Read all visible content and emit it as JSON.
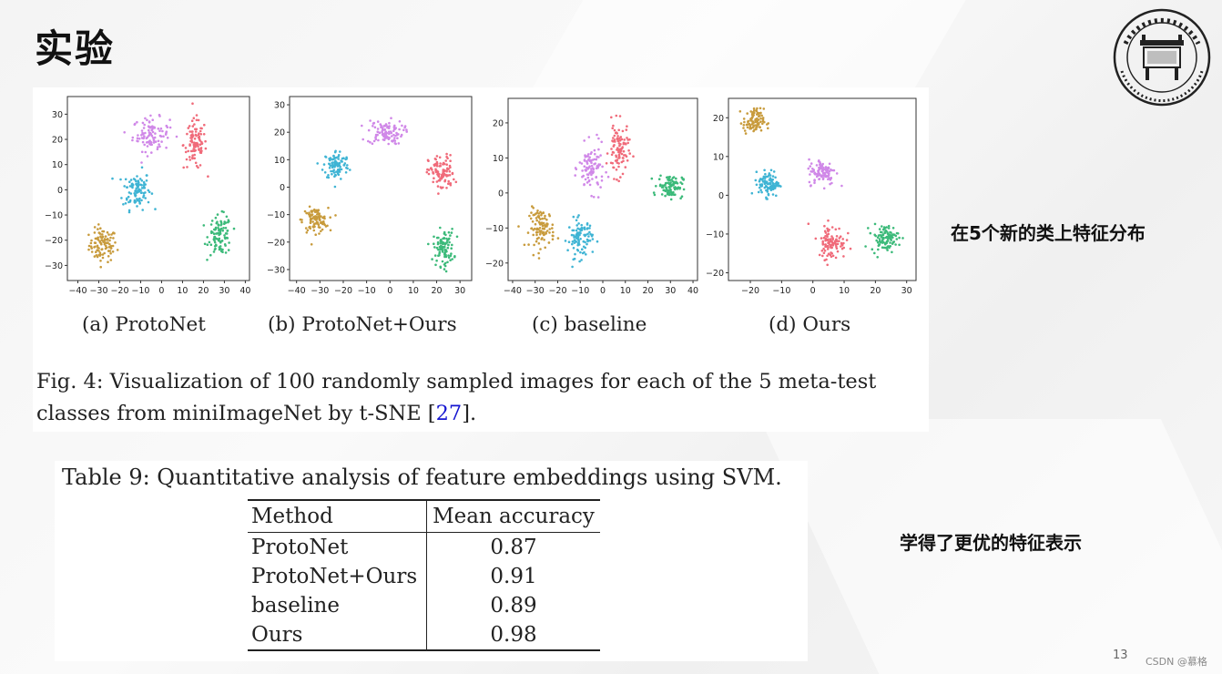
{
  "slide": {
    "title": "实验",
    "page_number": "13",
    "watermark": "CSDN @慕格",
    "note_distribution": "在5个新的类上特征分布",
    "note_representation": "学得了更优的特征表示"
  },
  "logo": {
    "icon": "university-seal-icon"
  },
  "figure": {
    "panel_labels": [
      "(a) ProtoNet",
      "(b) ProtoNet+Ours",
      "(c) baseline",
      "(d) Ours"
    ],
    "caption_part1": "Fig. 4: Visualization of 100 randomly sampled images for each of the 5 meta-test",
    "caption_part2": "classes from miniImageNet by t-SNE [",
    "caption_ref": "27",
    "caption_part3": "]."
  },
  "table": {
    "caption": "Table 9: Quantitative analysis of feature embeddings using SVM.",
    "headers": [
      "Method",
      "Mean accuracy"
    ],
    "rows": [
      {
        "method": "ProtoNet",
        "accuracy": "0.87"
      },
      {
        "method": "ProtoNet+Ours",
        "accuracy": "0.91"
      },
      {
        "method": "baseline",
        "accuracy": "0.89"
      },
      {
        "method": "Ours",
        "accuracy": "0.98"
      }
    ]
  },
  "chart_data": [
    {
      "type": "scatter",
      "title": "(a) ProtoNet",
      "xlim": [
        -45,
        42
      ],
      "ylim": [
        -36,
        37
      ],
      "xticks": [
        -40,
        -30,
        -20,
        -10,
        0,
        10,
        20,
        30,
        40
      ],
      "yticks": [
        -30,
        -20,
        -10,
        0,
        10,
        20,
        30
      ],
      "clusters": [
        {
          "color": "#c89b3c",
          "center": [
            -28,
            -22
          ],
          "spread": [
            6,
            6
          ]
        },
        {
          "color": "#3fb4d4",
          "center": [
            -12,
            0
          ],
          "spread": [
            6,
            7
          ]
        },
        {
          "color": "#d088e8",
          "center": [
            -5,
            22
          ],
          "spread": [
            8,
            6
          ]
        },
        {
          "color": "#f06b7a",
          "center": [
            16,
            18
          ],
          "spread": [
            5,
            9
          ]
        },
        {
          "color": "#3cba7a",
          "center": [
            28,
            -18
          ],
          "spread": [
            5,
            7
          ]
        }
      ]
    },
    {
      "type": "scatter",
      "title": "(b) ProtoNet+Ours",
      "xlim": [
        -43,
        35
      ],
      "ylim": [
        -34,
        33
      ],
      "xticks": [
        -40,
        -30,
        -20,
        -10,
        0,
        10,
        20,
        30
      ],
      "yticks": [
        -30,
        -20,
        -10,
        0,
        10,
        20,
        30
      ],
      "clusters": [
        {
          "color": "#c89b3c",
          "center": [
            -32,
            -12
          ],
          "spread": [
            5,
            4
          ]
        },
        {
          "color": "#3fb4d4",
          "center": [
            -23,
            8
          ],
          "spread": [
            5,
            5
          ]
        },
        {
          "color": "#d088e8",
          "center": [
            -2,
            20
          ],
          "spread": [
            7,
            4
          ]
        },
        {
          "color": "#f06b7a",
          "center": [
            22,
            5
          ],
          "spread": [
            5,
            6
          ]
        },
        {
          "color": "#3cba7a",
          "center": [
            23,
            -22
          ],
          "spread": [
            4,
            6
          ]
        }
      ]
    },
    {
      "type": "scatter",
      "title": "(c) baseline",
      "xlim": [
        -42,
        42
      ],
      "ylim": [
        -25,
        27
      ],
      "xticks": [
        -40,
        -30,
        -20,
        -10,
        0,
        10,
        20,
        30,
        40
      ],
      "yticks": [
        -20,
        -10,
        0,
        10,
        20
      ],
      "clusters": [
        {
          "color": "#c89b3c",
          "center": [
            -27,
            -10
          ],
          "spread": [
            5,
            5
          ]
        },
        {
          "color": "#3fb4d4",
          "center": [
            -10,
            -13
          ],
          "spread": [
            5,
            5
          ]
        },
        {
          "color": "#d088e8",
          "center": [
            -5,
            7
          ],
          "spread": [
            5,
            6
          ]
        },
        {
          "color": "#f06b7a",
          "center": [
            7,
            12
          ],
          "spread": [
            4,
            7
          ]
        },
        {
          "color": "#3cba7a",
          "center": [
            30,
            2
          ],
          "spread": [
            5,
            3
          ]
        }
      ]
    },
    {
      "type": "scatter",
      "title": "(d) Ours",
      "xlim": [
        -27,
        33
      ],
      "ylim": [
        -22,
        25
      ],
      "xticks": [
        -20,
        -10,
        0,
        10,
        20,
        30
      ],
      "yticks": [
        -20,
        -10,
        0,
        10,
        20
      ],
      "clusters": [
        {
          "color": "#c89b3c",
          "center": [
            -19,
            19
          ],
          "spread": [
            3,
            3
          ]
        },
        {
          "color": "#3fb4d4",
          "center": [
            -14,
            3
          ],
          "spread": [
            3,
            3
          ]
        },
        {
          "color": "#d088e8",
          "center": [
            3,
            6
          ],
          "spread": [
            4,
            3
          ]
        },
        {
          "color": "#f06b7a",
          "center": [
            6,
            -12
          ],
          "spread": [
            4,
            4
          ]
        },
        {
          "color": "#3cba7a",
          "center": [
            23,
            -11
          ],
          "spread": [
            4,
            3
          ]
        }
      ]
    }
  ]
}
